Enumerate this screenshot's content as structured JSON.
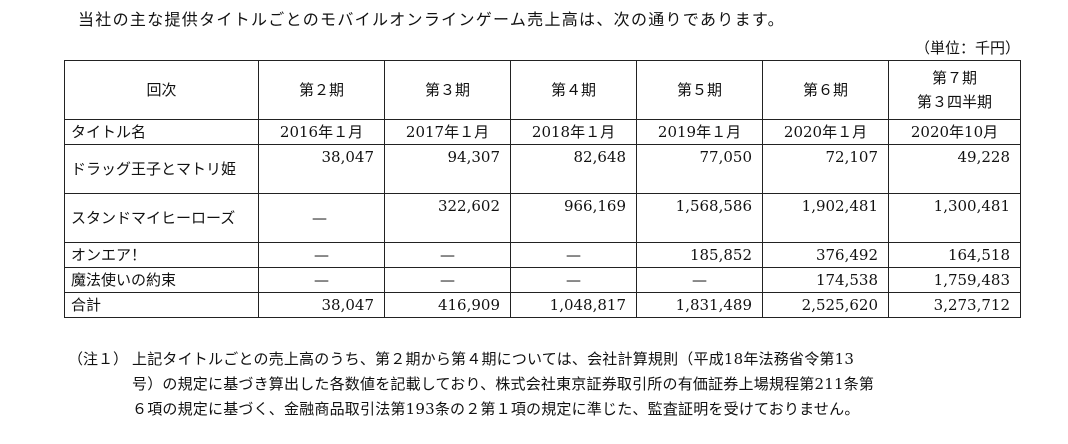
{
  "intro": "当社の主な提供タイトルごとのモバイルオンラインゲーム売上高は、次の通りであります。",
  "unit": "（単位：千円）",
  "table": {
    "header": {
      "label": "回次",
      "periods": [
        "第２期",
        "第３期",
        "第４期",
        "第５期",
        "第６期"
      ],
      "last_period_line1": "第７期",
      "last_period_line2": "第３四半期"
    },
    "dates_row": {
      "label": "タイトル名",
      "dates": [
        "2016年１月",
        "2017年１月",
        "2018年１月",
        "2019年１月",
        "2020年１月",
        "2020年10月"
      ]
    },
    "rows": [
      {
        "name": "ドラッグ王子とマトリ姫",
        "values": [
          "38,047",
          "94,307",
          "82,648",
          "77,050",
          "72,107",
          "49,228"
        ]
      },
      {
        "name": "スタンドマイヒーローズ",
        "values": [
          "—",
          "322,602",
          "966,169",
          "1,568,586",
          "1,902,481",
          "1,300,481"
        ]
      },
      {
        "name": "オンエア！",
        "values": [
          "—",
          "—",
          "—",
          "185,852",
          "376,492",
          "164,518"
        ]
      },
      {
        "name": "魔法使いの約束",
        "values": [
          "—",
          "—",
          "—",
          "—",
          "174,538",
          "1,759,483"
        ]
      },
      {
        "name": "合計",
        "values": [
          "38,047",
          "416,909",
          "1,048,817",
          "1,831,489",
          "2,525,620",
          "3,273,712"
        ]
      }
    ]
  },
  "note": {
    "label": "（注１）",
    "line1": "上記タイトルごとの売上高のうち、第２期から第４期については、会社計算規則（平成18年法務省令第13",
    "line2": "号）の規定に基づき算出した各数値を記載しており、株式会社東京証券取引所の有価証券上場規程第211条第",
    "line3": "６項の規定に基づく、金融商品取引法第193条の２第１項の規定に準じた、監査証明を受けておりません。"
  }
}
